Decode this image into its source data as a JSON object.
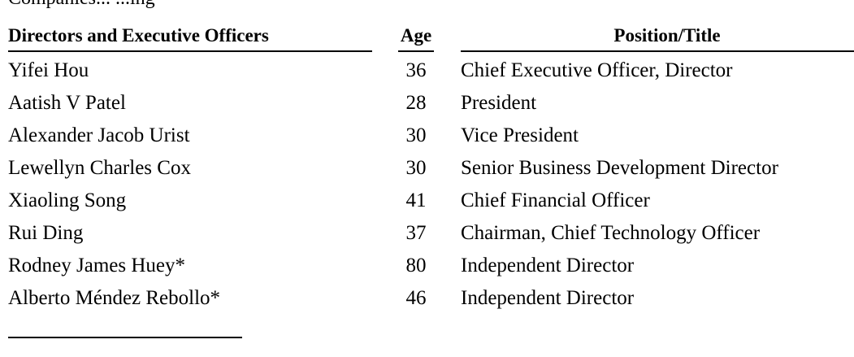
{
  "table": {
    "top_partial_text": "Companies... ...ing",
    "headers": {
      "name": "Directors and Executive Officers",
      "age": "Age",
      "position": "Position/Title"
    },
    "rows": [
      {
        "name": "Yifei Hou",
        "age": "36",
        "position": "Chief Executive Officer, Director"
      },
      {
        "name": "Aatish V Patel",
        "age": "28",
        "position": "President"
      },
      {
        "name": "Alexander Jacob Urist",
        "age": "30",
        "position": "Vice President"
      },
      {
        "name": "Lewellyn Charles Cox",
        "age": "30",
        "position": "Senior Business Development Director"
      },
      {
        "name": "Xiaoling Song",
        "age": "41",
        "position": "Chief Financial Officer"
      },
      {
        "name": "Rui Ding",
        "age": "37",
        "position": "Chairman, Chief Technology Officer"
      },
      {
        "name": "Rodney James Huey*",
        "age": "80",
        "position": "Independent Director"
      },
      {
        "name": "Alberto Méndez Rebollo*",
        "age": "46",
        "position": "Independent Director"
      }
    ]
  }
}
